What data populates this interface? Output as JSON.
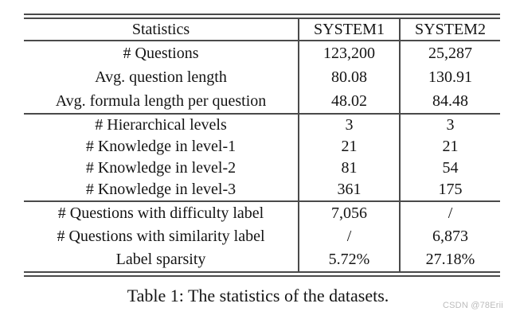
{
  "caption": "Table 1: The statistics of the datasets.",
  "watermark": "CSDN @78Erii",
  "colors": {
    "rule": "#4a4a4a",
    "text": "#141414",
    "watermark": "#bcbcbc",
    "background": "#ffffff"
  },
  "table": {
    "headers": [
      "Statistics",
      "SYSTEM1",
      "SYSTEM2"
    ],
    "groups": [
      {
        "rows": [
          {
            "label": "# Questions",
            "system1": "123,200",
            "system2": "25,287"
          },
          {
            "label": "Avg. question length",
            "system1": "80.08",
            "system2": "130.91"
          },
          {
            "label": "Avg. formula length per question",
            "system1": "48.02",
            "system2": "84.48"
          }
        ]
      },
      {
        "rows": [
          {
            "label": "# Hierarchical levels",
            "system1": "3",
            "system2": "3"
          },
          {
            "label": "# Knowledge in level-1",
            "system1": "21",
            "system2": "21"
          },
          {
            "label": "# Knowledge in level-2",
            "system1": "81",
            "system2": "54"
          },
          {
            "label": "# Knowledge in level-3",
            "system1": "361",
            "system2": "175"
          }
        ]
      },
      {
        "rows": [
          {
            "label": "# Questions with difficulty label",
            "system1": "7,056",
            "system2": "/"
          },
          {
            "label": "# Questions with similarity label",
            "system1": "/",
            "system2": "6,873"
          },
          {
            "label": "Label sparsity",
            "system1": "5.72%",
            "system2": "27.18%"
          }
        ]
      }
    ]
  }
}
